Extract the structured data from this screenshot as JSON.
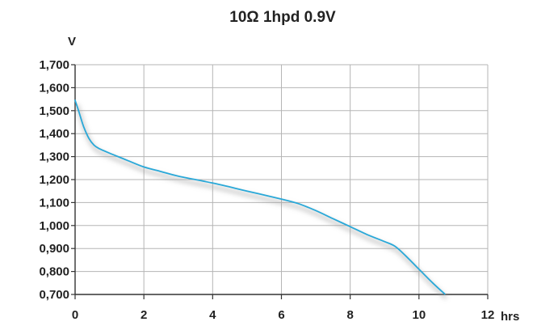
{
  "chart_data": {
    "type": "line",
    "title": "10Ω 1hpd 0.9V",
    "xlabel": "hrs",
    "ylabel": "V",
    "xlim": [
      0,
      12
    ],
    "ylim": [
      0.7,
      1.7
    ],
    "x_ticks": [
      0,
      2,
      4,
      6,
      8,
      10,
      12
    ],
    "x_tick_labels": [
      "0",
      "2",
      "4",
      "6",
      "8",
      "10",
      "12"
    ],
    "y_ticks": [
      0.7,
      0.8,
      0.9,
      1.0,
      1.1,
      1.2,
      1.3,
      1.4,
      1.5,
      1.6,
      1.7
    ],
    "y_tick_labels": [
      "0,700",
      "0,800",
      "0,900",
      "1,000",
      "1,100",
      "1,200",
      "1,300",
      "1,400",
      "1,500",
      "1,600",
      "1,700"
    ],
    "grid": true,
    "series": [
      {
        "color": "#29a8d8",
        "x": [
          0,
          0.1,
          0.25,
          0.4,
          0.55,
          0.7,
          1,
          1.5,
          2,
          2.5,
          3,
          4,
          5,
          6,
          6.5,
          7,
          7.5,
          8,
          8.5,
          9,
          9.3,
          9.6,
          10,
          10.4,
          10.75
        ],
        "y": [
          1.545,
          1.5,
          1.43,
          1.38,
          1.35,
          1.335,
          1.315,
          1.285,
          1.255,
          1.235,
          1.215,
          1.185,
          1.15,
          1.115,
          1.095,
          1.065,
          1.03,
          0.995,
          0.96,
          0.93,
          0.91,
          0.87,
          0.81,
          0.75,
          0.702
        ]
      }
    ]
  }
}
